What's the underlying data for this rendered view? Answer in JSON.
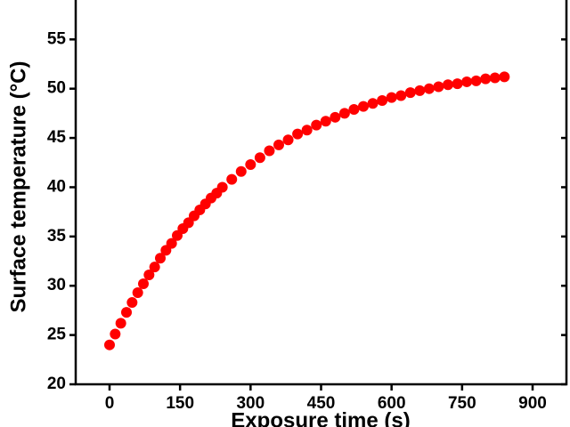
{
  "chart_data": {
    "type": "scatter",
    "x_label": "Exposure time (s)",
    "y_label": "Surface temperature (°C)",
    "xlim": [
      -72,
      972
    ],
    "ylim": [
      20,
      59
    ],
    "xticks": [
      0,
      150,
      300,
      450,
      600,
      750,
      900
    ],
    "yticks": [
      20,
      25,
      30,
      35,
      40,
      45,
      50,
      55
    ],
    "color": "#ff0000",
    "x": [
      0,
      12,
      24,
      36,
      48,
      60,
      72,
      84,
      96,
      108,
      120,
      132,
      144,
      156,
      168,
      180,
      192,
      204,
      216,
      228,
      240,
      260,
      280,
      300,
      320,
      340,
      360,
      380,
      400,
      420,
      440,
      460,
      480,
      500,
      520,
      540,
      560,
      580,
      600,
      620,
      640,
      660,
      680,
      700,
      720,
      740,
      760,
      780,
      800,
      820,
      840
    ],
    "values": [
      24.0,
      25.1,
      26.2,
      27.3,
      28.3,
      29.3,
      30.2,
      31.1,
      31.9,
      32.8,
      33.6,
      34.3,
      35.1,
      35.8,
      36.4,
      37.1,
      37.7,
      38.3,
      38.9,
      39.4,
      40.0,
      40.8,
      41.6,
      42.3,
      43.0,
      43.7,
      44.3,
      44.8,
      45.4,
      45.8,
      46.3,
      46.7,
      47.1,
      47.5,
      47.9,
      48.2,
      48.5,
      48.8,
      49.1,
      49.3,
      49.6,
      49.8,
      50.0,
      50.2,
      50.4,
      50.5,
      50.7,
      50.8,
      51.0,
      51.1,
      51.2
    ]
  }
}
